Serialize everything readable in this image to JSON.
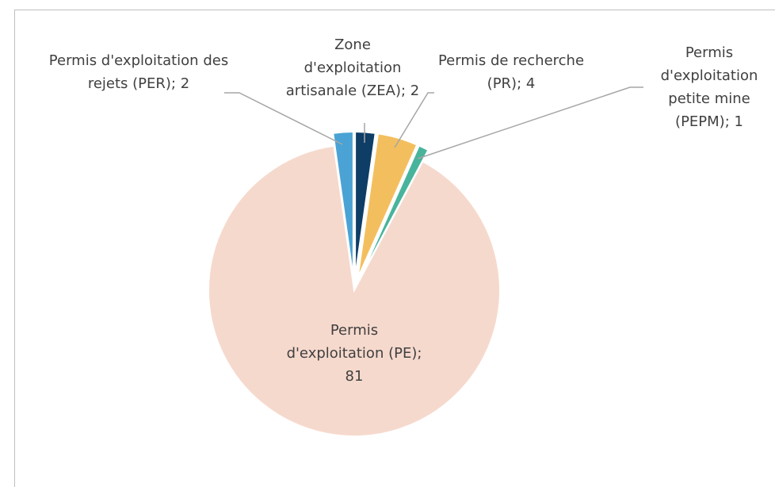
{
  "chart_data": {
    "type": "pie",
    "values": [
      2,
      2,
      4,
      1,
      81
    ],
    "value_labels": [
      "Permis d'exploitation des rejets (PER); 2",
      "Zone d'exploitation artisanale (ZEA); 2",
      "Permis de recherche (PR); 4",
      "Permis d'exploitation petite mine (PEPM); 1",
      "Permis d'exploitation (PE); 81"
    ],
    "colors": [
      "#4aa3d4",
      "#0e3d66",
      "#f3bf5e",
      "#48b49b",
      "#f6d9cd"
    ]
  }
}
